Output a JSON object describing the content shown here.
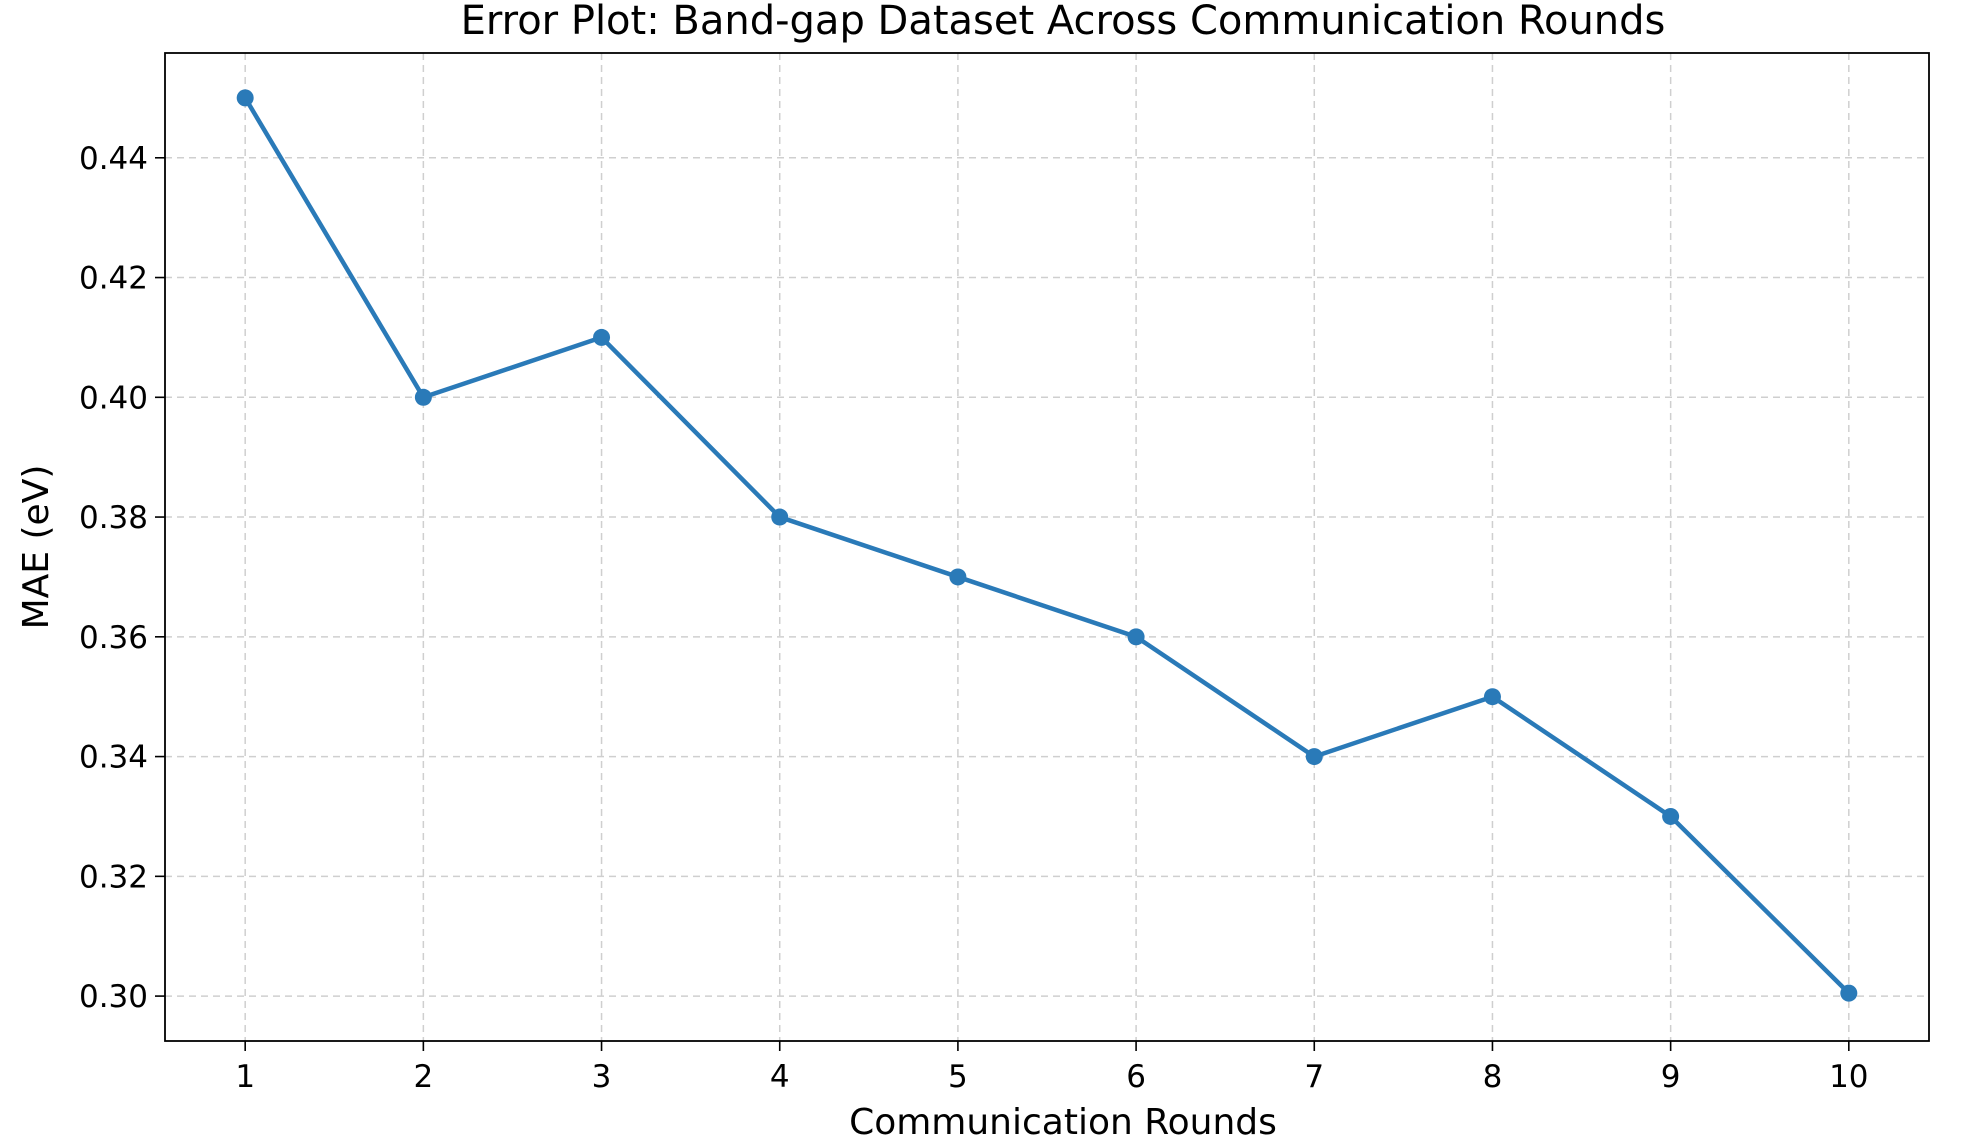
{
  "chart_data": {
    "type": "line",
    "title": "Error Plot: Band-gap Dataset Across Communication Rounds",
    "xlabel": "Communication Rounds",
    "ylabel": "MAE (eV)",
    "x": [
      1,
      2,
      3,
      4,
      5,
      6,
      7,
      8,
      9,
      10
    ],
    "series": [
      {
        "values": [
          0.45,
          0.4,
          0.41,
          0.38,
          0.37,
          0.36,
          0.34,
          0.35,
          0.33,
          0.3005
        ],
        "color": "#2a7ab8",
        "marker": "circle"
      }
    ],
    "xticks": [
      "1",
      "2",
      "3",
      "4",
      "5",
      "6",
      "7",
      "8",
      "9",
      "10"
    ],
    "yticks": [
      "0.30",
      "0.32",
      "0.34",
      "0.36",
      "0.38",
      "0.40",
      "0.42",
      "0.44"
    ],
    "ytick_values": [
      0.3,
      0.32,
      0.34,
      0.36,
      0.38,
      0.4,
      0.42,
      0.44
    ],
    "xlim": [
      0.55,
      10.45
    ],
    "ylim": [
      0.2925,
      0.4575
    ],
    "grid": true,
    "legend": false
  }
}
